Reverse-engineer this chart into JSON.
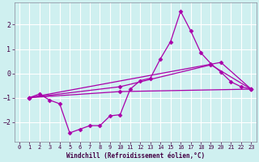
{
  "xlabel": "Windchill (Refroidissement éolien,°C)",
  "background_color": "#cff0f0",
  "grid_color": "#ffffff",
  "line_color": "#aa00aa",
  "x_ticks": [
    0,
    1,
    2,
    3,
    4,
    5,
    6,
    7,
    8,
    9,
    10,
    11,
    12,
    13,
    14,
    15,
    16,
    17,
    18,
    19,
    20,
    21,
    22,
    23
  ],
  "ylim": [
    -2.8,
    2.9
  ],
  "xlim": [
    -0.5,
    23.5
  ],
  "yticks": [
    -2,
    -1,
    0,
    1,
    2
  ],
  "series1_x": [
    1,
    2,
    3,
    4,
    5,
    6,
    7,
    8,
    9,
    10,
    11,
    12,
    13,
    14,
    15,
    16,
    17,
    18,
    19,
    20,
    21,
    22,
    23
  ],
  "series1_y": [
    -1.0,
    -0.85,
    -1.1,
    -1.25,
    -2.45,
    -2.3,
    -2.15,
    -2.15,
    -1.75,
    -1.7,
    -0.65,
    -0.3,
    -0.2,
    0.6,
    1.3,
    2.55,
    1.75,
    0.85,
    0.4,
    0.05,
    -0.35,
    -0.55,
    -0.65
  ],
  "series2_x": [
    1,
    10,
    23
  ],
  "series2_y": [
    -1.0,
    -0.75,
    -0.65
  ],
  "series3_x": [
    1,
    10,
    19,
    23
  ],
  "series3_y": [
    -1.0,
    -0.55,
    0.35,
    -0.65
  ],
  "series4_x": [
    1,
    20,
    23
  ],
  "series4_y": [
    -1.0,
    0.45,
    -0.65
  ]
}
